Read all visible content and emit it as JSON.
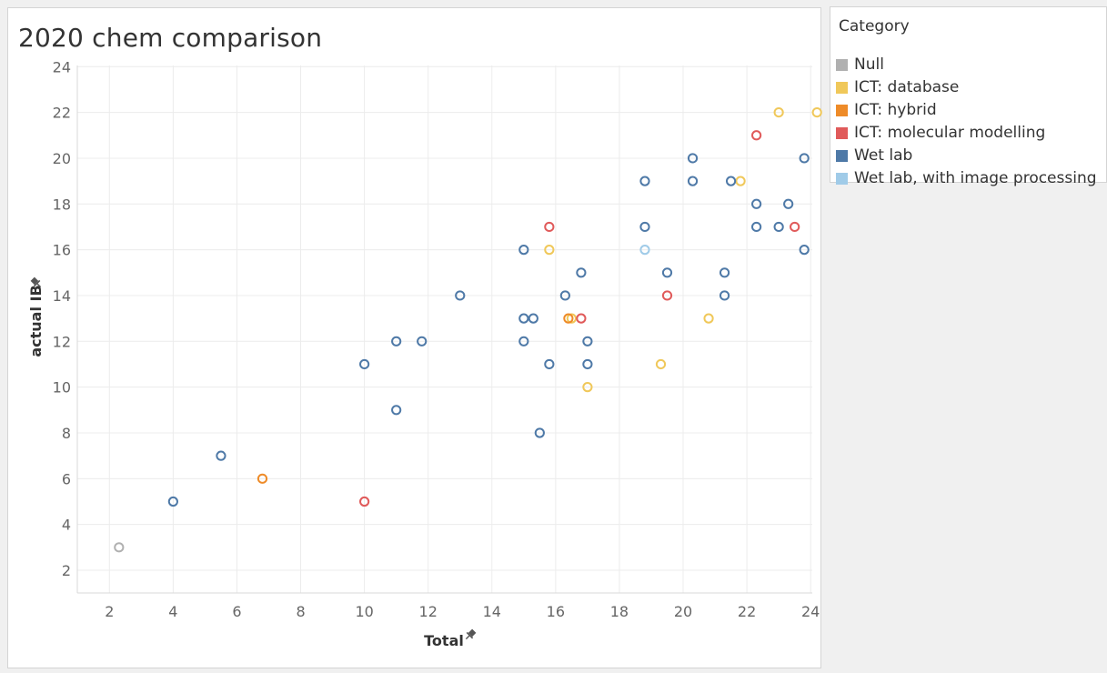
{
  "legend": {
    "title": "Category",
    "items": [
      {
        "label": "Null",
        "color": "#b0b0b0"
      },
      {
        "label": "ICT: database",
        "color": "#f0c85a"
      },
      {
        "label": "ICT: hybrid",
        "color": "#ee8b28"
      },
      {
        "label": "ICT: molecular modelling",
        "color": "#e05a5a"
      },
      {
        "label": "Wet lab",
        "color": "#4e79a7"
      },
      {
        "label": "Wet lab, with image processing",
        "color": "#a0cbe8"
      }
    ]
  },
  "chart_data": {
    "type": "scatter",
    "title": "2020 chem comparison",
    "xlabel": "Total",
    "ylabel": "actual IB",
    "xlim": [
      1,
      24.4
    ],
    "ylim": [
      1.1,
      25.1
    ],
    "xticks": [
      2,
      4,
      6,
      8,
      10,
      12,
      14,
      16,
      18,
      20,
      22,
      24
    ],
    "yticks": [
      2,
      4,
      6,
      8,
      10,
      12,
      14,
      16,
      18,
      20,
      22,
      24
    ],
    "grid": true,
    "legend_position": "right",
    "series": [
      {
        "name": "Null",
        "color": "#b0b0b0",
        "points": [
          [
            2.3,
            3
          ]
        ]
      },
      {
        "name": "ICT: database",
        "color": "#f0c85a",
        "points": [
          [
            15.8,
            16
          ],
          [
            16.5,
            13
          ],
          [
            17,
            10
          ],
          [
            19.3,
            11
          ],
          [
            20.8,
            13
          ],
          [
            21.8,
            19
          ],
          [
            23,
            22
          ],
          [
            24.2,
            22
          ]
        ]
      },
      {
        "name": "ICT: hybrid",
        "color": "#ee8b28",
        "points": [
          [
            6.8,
            6
          ],
          [
            16.4,
            13
          ]
        ]
      },
      {
        "name": "ICT: molecular modelling",
        "color": "#e05a5a",
        "points": [
          [
            10,
            5
          ],
          [
            15.8,
            17
          ],
          [
            16.8,
            13
          ],
          [
            19.5,
            14
          ],
          [
            22.3,
            21
          ],
          [
            23.5,
            17
          ]
        ]
      },
      {
        "name": "Wet lab",
        "color": "#4e79a7",
        "points": [
          [
            4,
            5
          ],
          [
            5.5,
            7
          ],
          [
            10,
            11
          ],
          [
            11,
            9
          ],
          [
            11,
            12
          ],
          [
            11.8,
            12
          ],
          [
            13,
            14
          ],
          [
            15,
            16
          ],
          [
            15,
            13
          ],
          [
            15.3,
            13
          ],
          [
            15,
            12
          ],
          [
            15.5,
            8
          ],
          [
            15.8,
            11
          ],
          [
            16.3,
            14
          ],
          [
            16.8,
            15
          ],
          [
            17,
            12
          ],
          [
            17,
            11
          ],
          [
            18.8,
            19
          ],
          [
            18.8,
            17
          ],
          [
            19.5,
            15
          ],
          [
            20.3,
            20
          ],
          [
            20.3,
            19
          ],
          [
            21.5,
            19
          ],
          [
            21.3,
            15
          ],
          [
            21.3,
            14
          ],
          [
            22.3,
            18
          ],
          [
            22.3,
            17
          ],
          [
            23,
            17
          ],
          [
            23.3,
            18
          ],
          [
            23.8,
            20
          ],
          [
            23.8,
            16
          ]
        ]
      },
      {
        "name": "Wet lab, with image processing",
        "color": "#a0cbe8",
        "points": [
          [
            18.8,
            16
          ]
        ]
      }
    ]
  }
}
